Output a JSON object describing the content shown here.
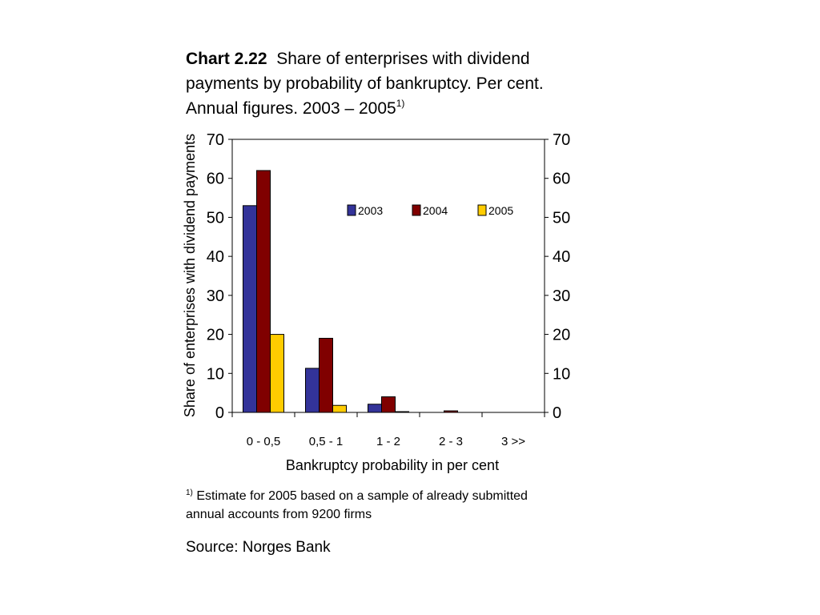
{
  "chart_title": {
    "label": "Chart 2.22",
    "text": "Share of enterprises with dividend payments by probability of bankruptcy. Per cent. Annual figures. 2003 – 2005",
    "superscript": "1)"
  },
  "footnote": {
    "marker": "1)",
    "text": "Estimate for 2005 based on a sample of already submitted annual accounts from 9200 firms"
  },
  "source": "Source: Norges Bank",
  "chart_data": {
    "type": "bar",
    "categories": [
      "0 -  0,5",
      "0,5 - 1",
      "1 - 2",
      "2 - 3",
      "3 >>"
    ],
    "series": [
      {
        "name": "2003",
        "color": "#333399",
        "values": [
          53,
          11.3,
          2.1,
          0,
          0
        ]
      },
      {
        "name": "2004",
        "color": "#800000",
        "values": [
          62,
          19,
          4,
          0.4,
          0
        ]
      },
      {
        "name": "2005",
        "color": "#FFCC00",
        "values": [
          20,
          1.8,
          0.2,
          0,
          0
        ]
      }
    ],
    "title": "",
    "xlabel": "Bankruptcy probability in per cent",
    "ylabel": "Share of enterprises with dividend payments",
    "ylim": [
      0,
      70
    ],
    "yticks": [
      0,
      10,
      20,
      30,
      40,
      50,
      60,
      70
    ],
    "y2ticks": [
      0,
      10,
      20,
      30,
      40,
      50,
      60,
      70
    ],
    "grid": false,
    "legend_position": "top-right"
  }
}
